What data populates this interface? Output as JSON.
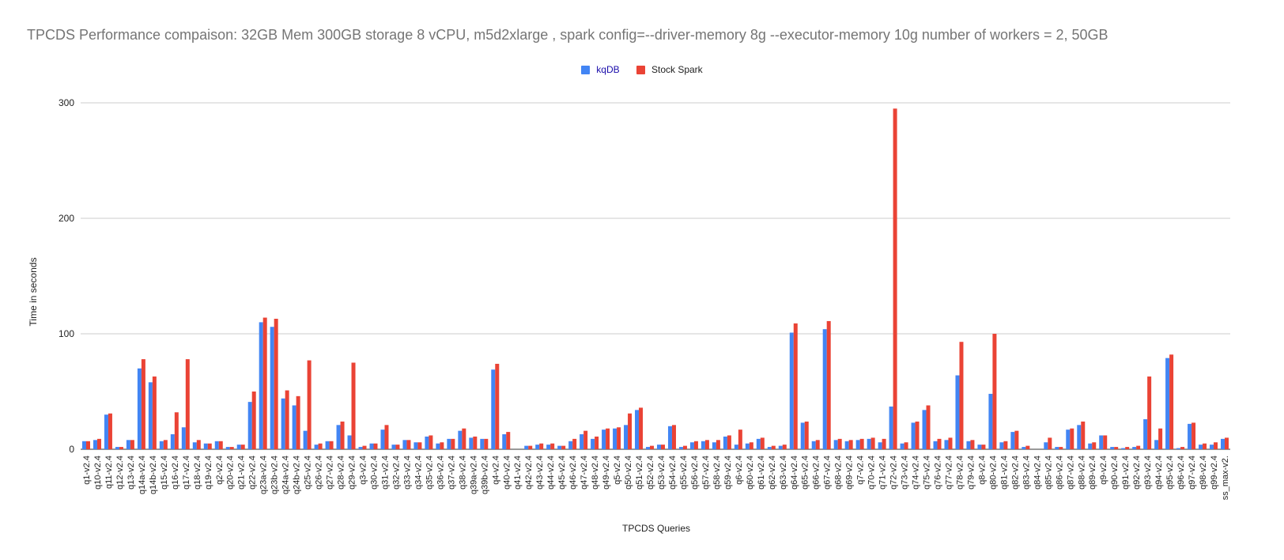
{
  "chart_data": {
    "type": "bar",
    "title": "TPCDS Performance compaison: 32GB Mem 300GB storage 8 vCPU, m5d2xlarge , spark config=--driver-memory 8g --executor-memory 10g  number of workers = 2, 50GB",
    "xlabel": "TPCDS Queries",
    "ylabel": "Time in seconds",
    "ylim": [
      0,
      300
    ],
    "yticks": [
      "0",
      "100",
      "200",
      "300"
    ],
    "grid": true,
    "legend_position": "top-center",
    "categories": [
      "q1-v2.4",
      "q10-v2.4",
      "q11-v2.4",
      "q12-v2.4",
      "q13-v2.4",
      "q14a-v2.4",
      "q14b-v2.4",
      "q15-v2.4",
      "q16-v2.4",
      "q17-v2.4",
      "q18-v2.4",
      "q19-v2.4",
      "q2-v2.4",
      "q20-v2.4",
      "q21-v2.4",
      "q22-v2.4",
      "q23a-v2.4",
      "q23b-v2.4",
      "q24a-v2.4",
      "q24b-v2.4",
      "q25-v2.4",
      "q26-v2.4",
      "q27-v2.4",
      "q28-v2.4",
      "q29-v2.4",
      "q3-v2.4",
      "q30-v2.4",
      "q31-v2.4",
      "q32-v2.4",
      "q33-v2.4",
      "q34-v2.4",
      "q35-v2.4",
      "q36-v2.4",
      "q37-v2.4",
      "q38-v2.4",
      "q39a-v2.4",
      "q39b-v2.4",
      "q4-v2.4",
      "q40-v2.4",
      "q41-v2.4",
      "q42-v2.4",
      "q43-v2.4",
      "q44-v2.4",
      "q45-v2.4",
      "q46-v2.4",
      "q47-v2.4",
      "q48-v2.4",
      "q49-v2.4",
      "q5-v2.4",
      "q50-v2.4",
      "q51-v2.4",
      "q52-v2.4",
      "q53-v2.4",
      "q54-v2.4",
      "q55-v2.4",
      "q56-v2.4",
      "q57-v2.4",
      "q58-v2.4",
      "q59-v2.4",
      "q6-v2.4",
      "q60-v2.4",
      "q61-v2.4",
      "q62-v2.4",
      "q63-v2.4",
      "q64-v2.4",
      "q65-v2.4",
      "q66-v2.4",
      "q67-v2.4",
      "q68-v2.4",
      "q69-v2.4",
      "q7-v2.4",
      "q70-v2.4",
      "q71-v2.4",
      "q72-v2.4",
      "q73-v2.4",
      "q74-v2.4",
      "q75-v2.4",
      "q76-v2.4",
      "q77-v2.4",
      "q78-v2.4",
      "q79-v2.4",
      "q8-v2.4",
      "q80-v2.4",
      "q81-v2.4",
      "q82-v2.4",
      "q83-v2.4",
      "q84-v2.4",
      "q85-v2.4",
      "q86-v2.4",
      "q87-v2.4",
      "q88-v2.4",
      "q89-v2.4",
      "q9-v2.4",
      "q90-v2.4",
      "q91-v2.4",
      "q92-v2.4",
      "q93-v2.4",
      "q94-v2.4",
      "q95-v2.4",
      "q96-v2.4",
      "q97-v2.4",
      "q98-v2.4",
      "q99-v2.4",
      "ss_max-v2."
    ],
    "series": [
      {
        "name": "kqDB",
        "color": "#4285f4",
        "values": [
          7,
          8,
          30,
          2,
          8,
          70,
          58,
          7,
          13,
          19,
          6,
          5,
          7,
          2,
          4,
          41,
          110,
          106,
          44,
          38,
          16,
          4,
          7,
          21,
          12,
          2,
          5,
          17,
          4,
          8,
          6,
          11,
          5,
          9,
          16,
          10,
          9,
          69,
          13,
          0,
          3,
          4,
          4,
          3,
          7,
          13,
          9,
          17,
          18,
          21,
          34,
          2,
          4,
          20,
          2,
          6,
          7,
          6,
          11,
          4,
          5,
          9,
          2,
          3,
          101,
          23,
          7,
          104,
          8,
          7,
          8,
          9,
          6,
          37,
          5,
          23,
          34,
          7,
          8,
          64,
          7,
          4,
          48,
          6,
          15,
          2,
          0,
          6,
          2,
          17,
          21,
          5,
          12,
          2,
          1,
          2,
          26,
          8,
          79,
          1,
          22,
          4,
          4,
          9
        ]
      },
      {
        "name": "Stock Spark",
        "color": "#ea4335",
        "values": [
          7,
          9,
          31,
          2,
          8,
          78,
          63,
          8,
          32,
          78,
          8,
          5,
          7,
          2,
          4,
          50,
          114,
          113,
          51,
          46,
          77,
          5,
          7,
          24,
          75,
          3,
          5,
          21,
          4,
          8,
          6,
          12,
          6,
          9,
          18,
          11,
          9,
          74,
          15,
          0,
          3,
          5,
          5,
          3,
          9,
          16,
          11,
          18,
          19,
          31,
          36,
          3,
          4,
          21,
          3,
          7,
          8,
          8,
          12,
          17,
          6,
          10,
          3,
          4,
          109,
          24,
          8,
          111,
          9,
          8,
          9,
          10,
          9,
          295,
          6,
          24,
          38,
          9,
          10,
          93,
          8,
          4,
          100,
          7,
          16,
          3,
          0,
          10,
          2,
          18,
          24,
          6,
          12,
          2,
          2,
          3,
          63,
          18,
          82,
          2,
          23,
          5,
          6,
          10
        ]
      }
    ]
  }
}
